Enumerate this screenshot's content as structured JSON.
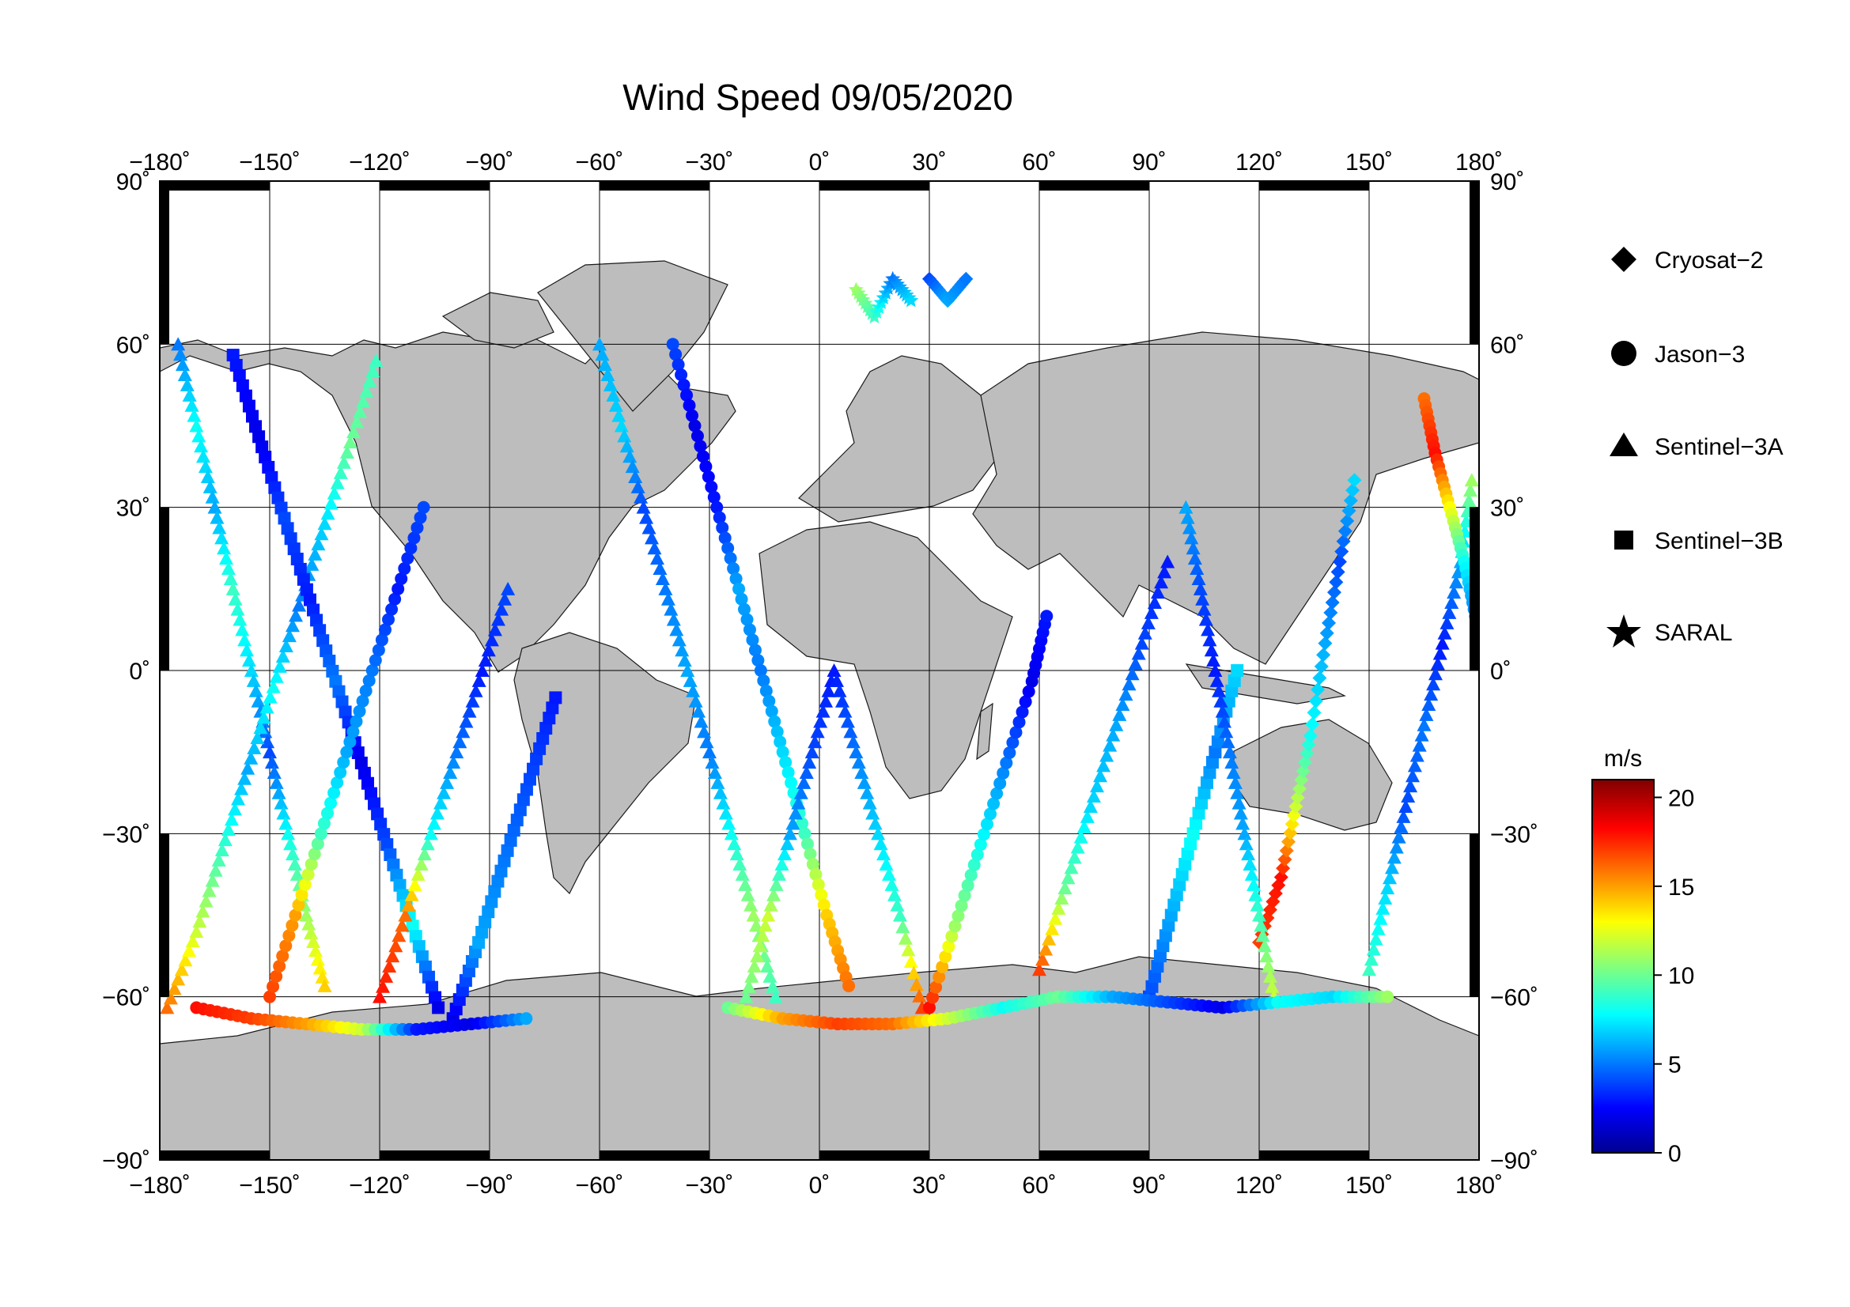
{
  "title": "Wind Speed 09/05/2020",
  "axes": {
    "lon_ticks": [
      -180,
      -150,
      -120,
      -90,
      -60,
      -30,
      0,
      30,
      60,
      90,
      120,
      150,
      180
    ],
    "lon_labels": [
      "−180˚",
      "−150˚",
      "−120˚",
      "−90˚",
      "−60˚",
      "−30˚",
      "0˚",
      "30˚",
      "60˚",
      "90˚",
      "120˚",
      "150˚",
      "180˚"
    ],
    "lat_ticks": [
      90,
      60,
      30,
      0,
      -30,
      -60,
      -90
    ],
    "lat_labels": [
      "90˚",
      "60˚",
      "30˚",
      "0˚",
      "−30˚",
      "−60˚",
      "−90˚"
    ],
    "lon_range": [
      -180,
      180
    ],
    "lat_range": [
      -90,
      90
    ],
    "grid": true
  },
  "legend": {
    "placement": "right",
    "items": [
      {
        "label": "Cryosat−2",
        "marker": "diamond"
      },
      {
        "label": "Jason−3",
        "marker": "circle"
      },
      {
        "label": "Sentinel−3A",
        "marker": "triangle"
      },
      {
        "label": "Sentinel−3B",
        "marker": "square"
      },
      {
        "label": "SARAL",
        "marker": "star"
      }
    ]
  },
  "colorbar": {
    "unit": "m/s",
    "min": 0,
    "max": 21,
    "ticks": [
      0,
      5,
      10,
      15,
      20
    ],
    "tick_labels": [
      "0",
      "5",
      "10",
      "15",
      "20"
    ],
    "colormap": [
      "#00008f",
      "#0000ff",
      "#00ffff",
      "#ffff00",
      "#ff0000",
      "#800000"
    ]
  },
  "colors": {
    "land": "#bdbdbd",
    "ocean": "#ffffff",
    "frame": "#000000"
  },
  "chart_data": {
    "type": "scatter",
    "title": "Wind Speed 09/05/2020",
    "xlabel": "",
    "ylabel": "",
    "x_range": [
      -180,
      180
    ],
    "y_range": [
      -90,
      90
    ],
    "value_unit": "m/s",
    "tracks": [
      {
        "marker": "triangle",
        "points": [
          [
            -175,
            60,
            5
          ],
          [
            -170,
            45,
            8
          ],
          [
            -165,
            30,
            6
          ],
          [
            -160,
            15,
            9
          ],
          [
            -155,
            0,
            7
          ],
          [
            -150,
            -15,
            4
          ],
          [
            -145,
            -30,
            8
          ],
          [
            -140,
            -45,
            11
          ],
          [
            -135,
            -58,
            14
          ]
        ]
      },
      {
        "marker": "triangle",
        "points": [
          [
            -178,
            -62,
            16
          ],
          [
            -170,
            -48,
            12
          ],
          [
            -163,
            -33,
            9
          ],
          [
            -156,
            -18,
            6
          ],
          [
            -149,
            -3,
            8
          ],
          [
            -142,
            12,
            5
          ],
          [
            -135,
            27,
            7
          ],
          [
            -128,
            42,
            10
          ],
          [
            -121,
            57,
            9
          ]
        ]
      },
      {
        "marker": "square",
        "points": [
          [
            -160,
            58,
            3
          ],
          [
            -153,
            43,
            2
          ],
          [
            -146,
            28,
            4
          ],
          [
            -139,
            13,
            3
          ],
          [
            -132,
            -2,
            5
          ],
          [
            -125,
            -17,
            2
          ],
          [
            -118,
            -32,
            4
          ],
          [
            -111,
            -47,
            8
          ],
          [
            -104,
            -62,
            2
          ]
        ]
      },
      {
        "marker": "circle",
        "points": [
          [
            -150,
            -60,
            17
          ],
          [
            -143,
            -45,
            15
          ],
          [
            -136,
            -30,
            9
          ],
          [
            -129,
            -15,
            6
          ],
          [
            -122,
            0,
            5
          ],
          [
            -115,
            15,
            3
          ],
          [
            -108,
            30,
            4
          ]
        ]
      },
      {
        "marker": "triangle",
        "points": [
          [
            -120,
            -60,
            18
          ],
          [
            -113,
            -45,
            16
          ],
          [
            -106,
            -30,
            8
          ],
          [
            -99,
            -15,
            5
          ],
          [
            -92,
            0,
            3
          ],
          [
            -85,
            15,
            4
          ]
        ]
      },
      {
        "marker": "square",
        "points": [
          [
            -100,
            -64,
            2
          ],
          [
            -93,
            -50,
            6
          ],
          [
            -86,
            -35,
            5
          ],
          [
            -79,
            -20,
            4
          ],
          [
            -72,
            -5,
            3
          ]
        ]
      },
      {
        "marker": "triangle",
        "points": [
          [
            -60,
            60,
            6
          ],
          [
            -54,
            45,
            7
          ],
          [
            -48,
            30,
            4
          ],
          [
            -42,
            15,
            5
          ],
          [
            -36,
            0,
            6
          ],
          [
            -30,
            -15,
            5
          ],
          [
            -24,
            -30,
            8
          ],
          [
            -18,
            -45,
            11
          ],
          [
            -12,
            -60,
            9
          ]
        ]
      },
      {
        "marker": "circle",
        "points": [
          [
            -40,
            60,
            4
          ],
          [
            -34,
            45,
            2
          ],
          [
            -28,
            30,
            3
          ],
          [
            -22,
            15,
            6
          ],
          [
            -16,
            0,
            5
          ],
          [
            -10,
            -15,
            7
          ],
          [
            -4,
            -30,
            9
          ],
          [
            2,
            -45,
            14
          ],
          [
            8,
            -58,
            16
          ]
        ]
      },
      {
        "marker": "triangle",
        "points": [
          [
            -20,
            -60,
            10
          ],
          [
            -14,
            -45,
            12
          ],
          [
            -8,
            -30,
            6
          ],
          [
            -2,
            -15,
            4
          ],
          [
            4,
            0,
            3
          ],
          [
            10,
            -15,
            5
          ],
          [
            16,
            -30,
            7
          ],
          [
            22,
            -45,
            9
          ],
          [
            28,
            -62,
            17
          ]
        ]
      },
      {
        "marker": "circle",
        "points": [
          [
            30,
            -62,
            18
          ],
          [
            37,
            -47,
            11
          ],
          [
            44,
            -32,
            8
          ],
          [
            51,
            -17,
            5
          ],
          [
            58,
            -2,
            2
          ],
          [
            62,
            10,
            3
          ]
        ]
      },
      {
        "marker": "triangle",
        "points": [
          [
            60,
            -55,
            17
          ],
          [
            67,
            -40,
            10
          ],
          [
            74,
            -25,
            7
          ],
          [
            81,
            -10,
            6
          ],
          [
            88,
            5,
            4
          ],
          [
            95,
            20,
            3
          ]
        ]
      },
      {
        "marker": "square",
        "points": [
          [
            90,
            -60,
            4
          ],
          [
            96,
            -45,
            6
          ],
          [
            102,
            -30,
            8
          ],
          [
            108,
            -15,
            5
          ],
          [
            114,
            0,
            7
          ]
        ]
      },
      {
        "marker": "diamond",
        "points": [
          [
            120,
            -50,
            17
          ],
          [
            126,
            -38,
            18
          ],
          [
            130,
            -25,
            12
          ],
          [
            134,
            -12,
            8
          ],
          [
            138,
            5,
            6
          ],
          [
            142,
            20,
            4
          ],
          [
            146,
            35,
            7
          ]
        ]
      },
      {
        "marker": "triangle",
        "points": [
          [
            150,
            -55,
            9
          ],
          [
            155,
            -40,
            7
          ],
          [
            160,
            -25,
            4
          ],
          [
            165,
            -10,
            5
          ],
          [
            170,
            5,
            3
          ],
          [
            175,
            20,
            6
          ],
          [
            178,
            35,
            11
          ]
        ]
      },
      {
        "marker": "circle",
        "points": [
          [
            165,
            50,
            16
          ],
          [
            168,
            40,
            18
          ],
          [
            172,
            30,
            13
          ],
          [
            176,
            20,
            8
          ],
          [
            179,
            10,
            5
          ]
        ]
      },
      {
        "marker": "triangle",
        "points": [
          [
            100,
            30,
            6
          ],
          [
            104,
            15,
            4
          ],
          [
            108,
            0,
            3
          ],
          [
            112,
            -15,
            5
          ],
          [
            116,
            -30,
            6
          ],
          [
            120,
            -45,
            9
          ],
          [
            124,
            -60,
            12
          ]
        ]
      },
      {
        "marker": "star",
        "points": [
          [
            10,
            70,
            11
          ],
          [
            15,
            65,
            9
          ],
          [
            20,
            72,
            5
          ],
          [
            25,
            68,
            7
          ]
        ]
      },
      {
        "marker": "diamond",
        "points": [
          [
            30,
            72,
            4
          ],
          [
            35,
            68,
            6
          ],
          [
            40,
            72,
            5
          ]
        ]
      },
      {
        "marker": "circle",
        "points": [
          [
            -170,
            -62,
            18
          ],
          [
            -155,
            -64,
            17
          ],
          [
            -140,
            -65,
            15
          ],
          [
            -125,
            -66,
            12
          ],
          [
            -110,
            -66,
            3
          ],
          [
            -95,
            -65,
            2
          ],
          [
            -80,
            -64,
            6
          ]
        ]
      },
      {
        "marker": "circle",
        "points": [
          [
            -25,
            -62,
            10
          ],
          [
            -10,
            -64,
            15
          ],
          [
            5,
            -65,
            17
          ],
          [
            20,
            -65,
            16
          ],
          [
            35,
            -64,
            12
          ],
          [
            50,
            -62,
            8
          ],
          [
            65,
            -60,
            10
          ],
          [
            80,
            -60,
            6
          ],
          [
            95,
            -61,
            4
          ],
          [
            110,
            -62,
            2
          ],
          [
            125,
            -61,
            8
          ],
          [
            140,
            -60,
            7
          ],
          [
            155,
            -60,
            11
          ]
        ]
      }
    ]
  }
}
